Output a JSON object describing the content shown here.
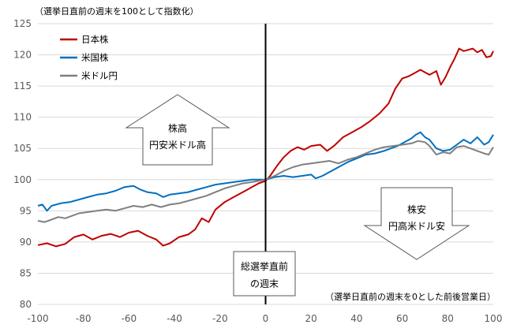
{
  "chart_data": {
    "type": "line",
    "title": "",
    "ylabel": "（選挙日直前の週末を100として指数化）",
    "xlabel": "（選挙日直前の週末を0とした前後営業日）",
    "xlim": [
      -100,
      100
    ],
    "ylim": [
      80,
      125
    ],
    "xticks": [
      -100,
      -80,
      -60,
      -40,
      -20,
      0,
      20,
      40,
      60,
      80,
      100
    ],
    "yticks": [
      80,
      85,
      90,
      95,
      100,
      105,
      110,
      115,
      120,
      125
    ],
    "grid": {
      "horizontal": true,
      "vertical": false
    },
    "legend_position": "top-left",
    "series": [
      {
        "name": "日本株",
        "color": "#C00000",
        "points": [
          [
            -100,
            89.5
          ],
          [
            -96,
            89.8
          ],
          [
            -92,
            89.3
          ],
          [
            -88,
            89.7
          ],
          [
            -84,
            90.8
          ],
          [
            -80,
            91.2
          ],
          [
            -76,
            90.4
          ],
          [
            -72,
            91.0
          ],
          [
            -68,
            91.3
          ],
          [
            -64,
            90.8
          ],
          [
            -60,
            91.5
          ],
          [
            -56,
            91.8
          ],
          [
            -52,
            91.0
          ],
          [
            -48,
            90.4
          ],
          [
            -45,
            89.4
          ],
          [
            -42,
            89.8
          ],
          [
            -38,
            90.8
          ],
          [
            -34,
            91.2
          ],
          [
            -31,
            92.0
          ],
          [
            -28,
            93.8
          ],
          [
            -25,
            93.2
          ],
          [
            -22,
            95.2
          ],
          [
            -18,
            96.4
          ],
          [
            -14,
            97.2
          ],
          [
            -10,
            98.0
          ],
          [
            -6,
            98.8
          ],
          [
            -3,
            99.4
          ],
          [
            0,
            99.8
          ],
          [
            2,
            100.6
          ],
          [
            5,
            102.2
          ],
          [
            8,
            103.6
          ],
          [
            11,
            104.6
          ],
          [
            14,
            105.2
          ],
          [
            17,
            104.8
          ],
          [
            20,
            105.4
          ],
          [
            24,
            105.6
          ],
          [
            27,
            104.6
          ],
          [
            30,
            105.4
          ],
          [
            34,
            106.8
          ],
          [
            38,
            107.6
          ],
          [
            42,
            108.4
          ],
          [
            46,
            109.4
          ],
          [
            50,
            110.6
          ],
          [
            54,
            112.2
          ],
          [
            57,
            114.6
          ],
          [
            60,
            116.2
          ],
          [
            63,
            116.6
          ],
          [
            66,
            117.2
          ],
          [
            68,
            117.6
          ],
          [
            70,
            117.2
          ],
          [
            72,
            116.8
          ],
          [
            75,
            117.4
          ],
          [
            77,
            115.2
          ],
          [
            79,
            116.4
          ],
          [
            81,
            118.0
          ],
          [
            83,
            119.4
          ],
          [
            85,
            121.0
          ],
          [
            87,
            120.6
          ],
          [
            89,
            120.8
          ],
          [
            91,
            121.0
          ],
          [
            93,
            120.4
          ],
          [
            95,
            120.8
          ],
          [
            97,
            119.6
          ],
          [
            99,
            119.8
          ],
          [
            100,
            120.6
          ]
        ]
      },
      {
        "name": "米国株",
        "color": "#0070C0",
        "points": [
          [
            -100,
            95.8
          ],
          [
            -98,
            96.0
          ],
          [
            -96,
            95.0
          ],
          [
            -94,
            95.8
          ],
          [
            -90,
            96.2
          ],
          [
            -86,
            96.4
          ],
          [
            -82,
            96.8
          ],
          [
            -78,
            97.2
          ],
          [
            -74,
            97.6
          ],
          [
            -70,
            97.8
          ],
          [
            -66,
            98.2
          ],
          [
            -62,
            98.8
          ],
          [
            -58,
            99.0
          ],
          [
            -55,
            98.4
          ],
          [
            -52,
            98.0
          ],
          [
            -48,
            97.8
          ],
          [
            -45,
            97.2
          ],
          [
            -42,
            97.6
          ],
          [
            -38,
            97.8
          ],
          [
            -34,
            98.0
          ],
          [
            -30,
            98.4
          ],
          [
            -26,
            98.8
          ],
          [
            -22,
            99.2
          ],
          [
            -18,
            99.4
          ],
          [
            -14,
            99.6
          ],
          [
            -10,
            99.8
          ],
          [
            -6,
            100.0
          ],
          [
            -3,
            100.0
          ],
          [
            0,
            100.0
          ],
          [
            4,
            100.4
          ],
          [
            8,
            100.6
          ],
          [
            12,
            100.4
          ],
          [
            16,
            100.6
          ],
          [
            20,
            100.8
          ],
          [
            22,
            100.2
          ],
          [
            25,
            100.6
          ],
          [
            28,
            101.2
          ],
          [
            32,
            102.0
          ],
          [
            36,
            102.8
          ],
          [
            40,
            103.4
          ],
          [
            44,
            104.0
          ],
          [
            48,
            104.2
          ],
          [
            52,
            104.6
          ],
          [
            55,
            105.0
          ],
          [
            58,
            105.4
          ],
          [
            61,
            106.0
          ],
          [
            64,
            106.6
          ],
          [
            66,
            107.2
          ],
          [
            68,
            107.6
          ],
          [
            70,
            106.8
          ],
          [
            72,
            106.4
          ],
          [
            75,
            105.0
          ],
          [
            78,
            104.6
          ],
          [
            81,
            104.8
          ],
          [
            84,
            105.6
          ],
          [
            87,
            106.4
          ],
          [
            90,
            105.8
          ],
          [
            93,
            106.8
          ],
          [
            96,
            105.6
          ],
          [
            98,
            106.0
          ],
          [
            100,
            107.2
          ]
        ]
      },
      {
        "name": "米ドル円",
        "color": "#7F7F7F",
        "points": [
          [
            -100,
            93.4
          ],
          [
            -97,
            93.2
          ],
          [
            -94,
            93.6
          ],
          [
            -91,
            94.0
          ],
          [
            -88,
            93.8
          ],
          [
            -85,
            94.2
          ],
          [
            -82,
            94.6
          ],
          [
            -78,
            94.8
          ],
          [
            -74,
            95.0
          ],
          [
            -70,
            95.2
          ],
          [
            -66,
            95.0
          ],
          [
            -62,
            95.4
          ],
          [
            -58,
            95.8
          ],
          [
            -54,
            95.6
          ],
          [
            -50,
            96.0
          ],
          [
            -46,
            95.6
          ],
          [
            -42,
            96.0
          ],
          [
            -38,
            96.2
          ],
          [
            -34,
            96.6
          ],
          [
            -30,
            97.0
          ],
          [
            -26,
            97.4
          ],
          [
            -22,
            98.0
          ],
          [
            -18,
            98.6
          ],
          [
            -14,
            99.0
          ],
          [
            -10,
            99.4
          ],
          [
            -6,
            99.6
          ],
          [
            -3,
            99.8
          ],
          [
            0,
            100.0
          ],
          [
            4,
            100.6
          ],
          [
            8,
            101.4
          ],
          [
            12,
            102.0
          ],
          [
            16,
            102.4
          ],
          [
            20,
            102.6
          ],
          [
            24,
            102.8
          ],
          [
            28,
            103.0
          ],
          [
            32,
            102.6
          ],
          [
            36,
            103.2
          ],
          [
            40,
            103.6
          ],
          [
            44,
            104.2
          ],
          [
            48,
            104.8
          ],
          [
            52,
            105.2
          ],
          [
            56,
            105.4
          ],
          [
            60,
            105.6
          ],
          [
            64,
            105.8
          ],
          [
            67,
            106.2
          ],
          [
            70,
            106.0
          ],
          [
            72,
            105.4
          ],
          [
            75,
            104.0
          ],
          [
            78,
            104.4
          ],
          [
            81,
            104.2
          ],
          [
            84,
            105.2
          ],
          [
            87,
            105.4
          ],
          [
            90,
            105.0
          ],
          [
            93,
            104.6
          ],
          [
            96,
            104.2
          ],
          [
            98,
            104.0
          ],
          [
            100,
            105.2
          ]
        ]
      }
    ],
    "annotations": {
      "vline_x": 0,
      "up_arrow": {
        "lines": [
          "株高",
          "円安米ドル高"
        ]
      },
      "down_arrow": {
        "lines": [
          "株安",
          "円高米ドル安"
        ]
      },
      "center_box": {
        "lines": [
          "総選挙直前",
          "の週末"
        ]
      }
    }
  }
}
